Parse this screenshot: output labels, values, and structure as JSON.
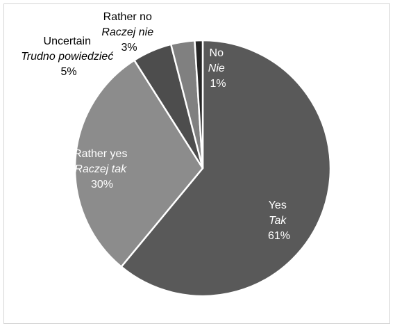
{
  "chart_data": {
    "type": "pie",
    "title": "",
    "slices": [
      {
        "label_en": "Yes",
        "label_pl": "Tak",
        "value": 61,
        "value_label": "61%",
        "color": "#595959"
      },
      {
        "label_en": "Rather yes",
        "label_pl": "Raczej tak",
        "value": 30,
        "value_label": "30%",
        "color": "#8c8c8c"
      },
      {
        "label_en": "Uncertain",
        "label_pl": "Trudno powiedzieć",
        "value": 5,
        "value_label": "5%",
        "color": "#4d4d4d"
      },
      {
        "label_en": "Rather no",
        "label_pl": "Raczej nie",
        "value": 3,
        "value_label": "3%",
        "color": "#808080"
      },
      {
        "label_en": "No",
        "label_pl": "Nie",
        "value": 1,
        "value_label": "1%",
        "color": "#262626"
      }
    ],
    "start": "12 o'clock",
    "direction": "clockwise",
    "legend": "none",
    "slice_separator_color": "#ffffff"
  }
}
